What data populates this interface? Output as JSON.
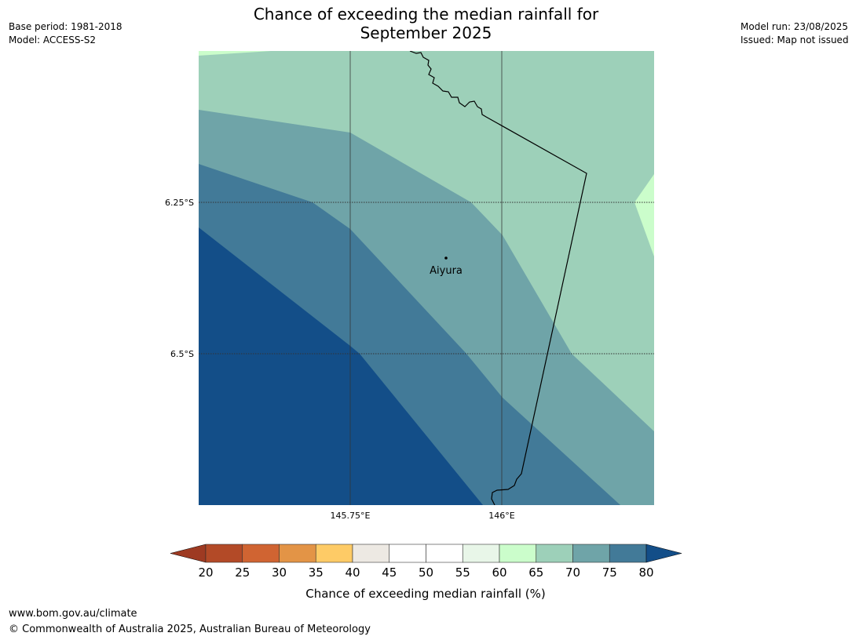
{
  "header": {
    "title_line1": "Chance of exceeding the median rainfall for",
    "title_line2": "September 2025",
    "base_period": "Base period: 1981-2018",
    "model": "Model: ACCESS-S2",
    "model_run": "Model run: 23/08/2025",
    "issued": "Issued: Map not issued"
  },
  "map": {
    "location_label": "Aiyura",
    "lat_labels": [
      "6.25°S",
      "6.5°S"
    ],
    "lon_labels": [
      "145.75°E",
      "146°E"
    ],
    "extent": {
      "lon_min": 145.5,
      "lon_max": 146.25,
      "lat_top": -6.0,
      "lat_bottom": -6.75
    }
  },
  "colorbar": {
    "title": "Chance of exceeding median rainfall (%)",
    "ticks": [
      "20",
      "25",
      "30",
      "35",
      "40",
      "45",
      "50",
      "55",
      "60",
      "65",
      "70",
      "75",
      "80"
    ],
    "colors": {
      "below_20": "#9e3a22",
      "20_25": "#b34a27",
      "25_30": "#d06432",
      "30_35": "#e39446",
      "35_40": "#fecb66",
      "40_45": "#ede9e3",
      "45_50": "#ffffff",
      "50_55": "#ffffff",
      "55_60": "#e8f6e8",
      "60_65": "#cbfdcb",
      "65_70": "#9dd0b9",
      "70_75": "#6fa4a8",
      "75_80": "#427a98",
      "above_80": "#134e88"
    }
  },
  "footer": {
    "url": "www.bom.gov.au/climate",
    "copyright": "© Commonwealth of Australia 2025, Australian Bureau of Meteorology"
  }
}
